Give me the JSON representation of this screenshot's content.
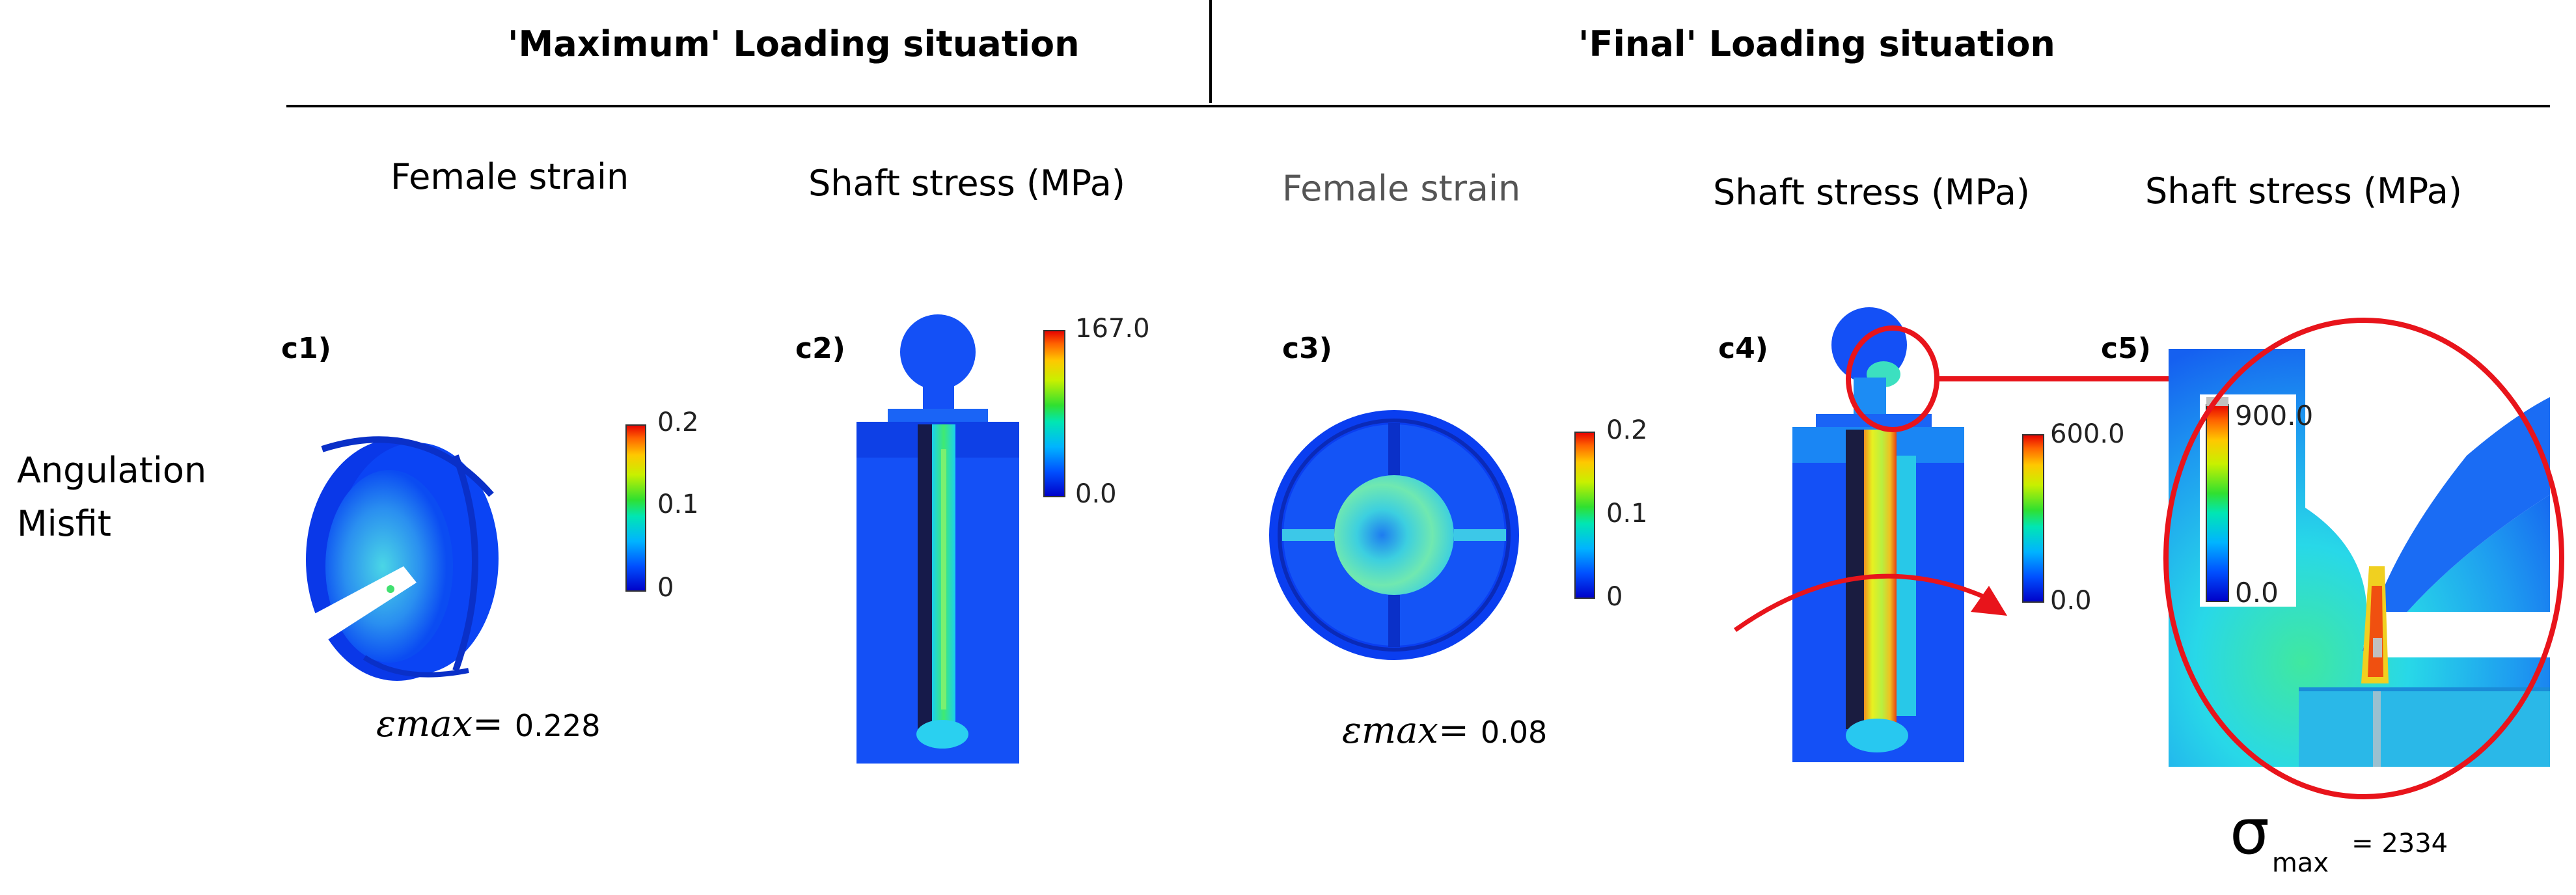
{
  "headers": {
    "maximum": "'Maximum' Loading situation",
    "final": "'Final' Loading situation"
  },
  "columns": [
    "Female strain",
    "Shaft stress (MPa)",
    "Female strain",
    "Shaft stress (MPa)",
    "Shaft stress (MPa)"
  ],
  "panels": [
    "c1)",
    "c2)",
    "c3)",
    "c4)",
    "c5)"
  ],
  "row_label": {
    "line1": "Angulation",
    "line2": "Misfit"
  },
  "scales": {
    "c1": {
      "ticks": [
        "0.2",
        "0.1",
        "0"
      ]
    },
    "c2": {
      "ticks": [
        "167.0",
        "0.0"
      ]
    },
    "c3": {
      "ticks": [
        "0.2",
        "0.1",
        "0"
      ]
    },
    "c4": {
      "ticks": [
        "600.0",
        "0.0"
      ]
    },
    "c5": {
      "ticks": [
        "900.0",
        "0.0"
      ]
    }
  },
  "results": {
    "c1_eps_symbol": "εmax=",
    "c1_eps_value": "0.228",
    "c3_eps_symbol": "εmax=",
    "c3_eps_value": "0.08",
    "sigma_symbol": "σ",
    "sigma_sub": "max",
    "sigma_value": "= 2334"
  },
  "colors": {
    "fem_blue": "#0a3cf0",
    "highlight_red": "#e8141b",
    "rule": "#000000"
  }
}
